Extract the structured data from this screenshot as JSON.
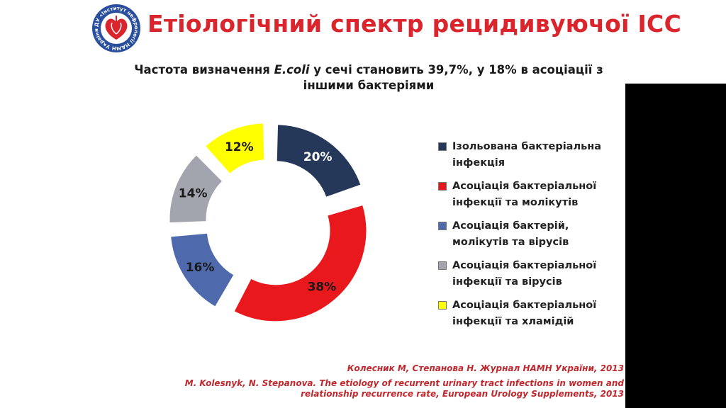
{
  "title": "Етіологічний спектр рецидивуючої ІСС",
  "subtitle": {
    "before": "Частота визначення ",
    "emphasis": "E.coli",
    "after": " у сечі становить 39,7%, у 18% в асоціації з іншими бактеріями"
  },
  "logo": {
    "icon": "kidney-heart-emblem-icon",
    "ring_text": "ДУ «Інститут нефрології НАМН України»"
  },
  "chart_data": {
    "type": "pie",
    "variant": "exploded-donut",
    "title": "",
    "legend_position": "right",
    "slices": [
      {
        "label": "Ізольована бактеріальна інфекція",
        "value": 20,
        "display": "20%",
        "color": "#263859",
        "text_color": "#ffffff"
      },
      {
        "label": "Асоціація бактеріальної інфекції та молікутів",
        "value": 38,
        "display": "38%",
        "color": "#e8181d",
        "text_color": "#1a1a1a"
      },
      {
        "label": "Асоціація бактерій, молікутів та вірусів",
        "value": 16,
        "display": "16%",
        "color": "#4e6aad",
        "text_color": "#1a1a1a"
      },
      {
        "label": "Асоціація бактеріальної інфекції та вірусів",
        "value": 14,
        "display": "14%",
        "color": "#a2a5ad",
        "text_color": "#1a1a1a"
      },
      {
        "label": "Асоціація бактеріальної інфекції та хламідій",
        "value": 12,
        "display": "12%",
        "color": "#ffff00",
        "text_color": "#1a1a1a"
      }
    ]
  },
  "legend": [
    {
      "label": "Ізольована бактеріальна інфекція",
      "color": "#263859"
    },
    {
      "label": "Асоціація бактеріальної інфекції та молікутів",
      "color": "#e8181d"
    },
    {
      "label": "Асоціація бактерій, молікутів та вірусів",
      "color": "#4e6aad"
    },
    {
      "label": "Асоціація бактеріальної інфекції та вірусів",
      "color": "#a2a5ad"
    },
    {
      "label": "Асоціація бактеріальної інфекції та хламідій",
      "color": "#ffff00"
    }
  ],
  "references": {
    "ua": "Колесник М, Степанова Н. Журнал НАМН України, 2013",
    "en": "M. Kolesnyk, N. Stepanova. The etiology of recurrent urinary tract infections in women and relationship recurrence rate, European Urology Supplements, 2013"
  },
  "colors": {
    "title": "#d9252b",
    "reference": "#c0282e",
    "side_bar": "#000000"
  }
}
